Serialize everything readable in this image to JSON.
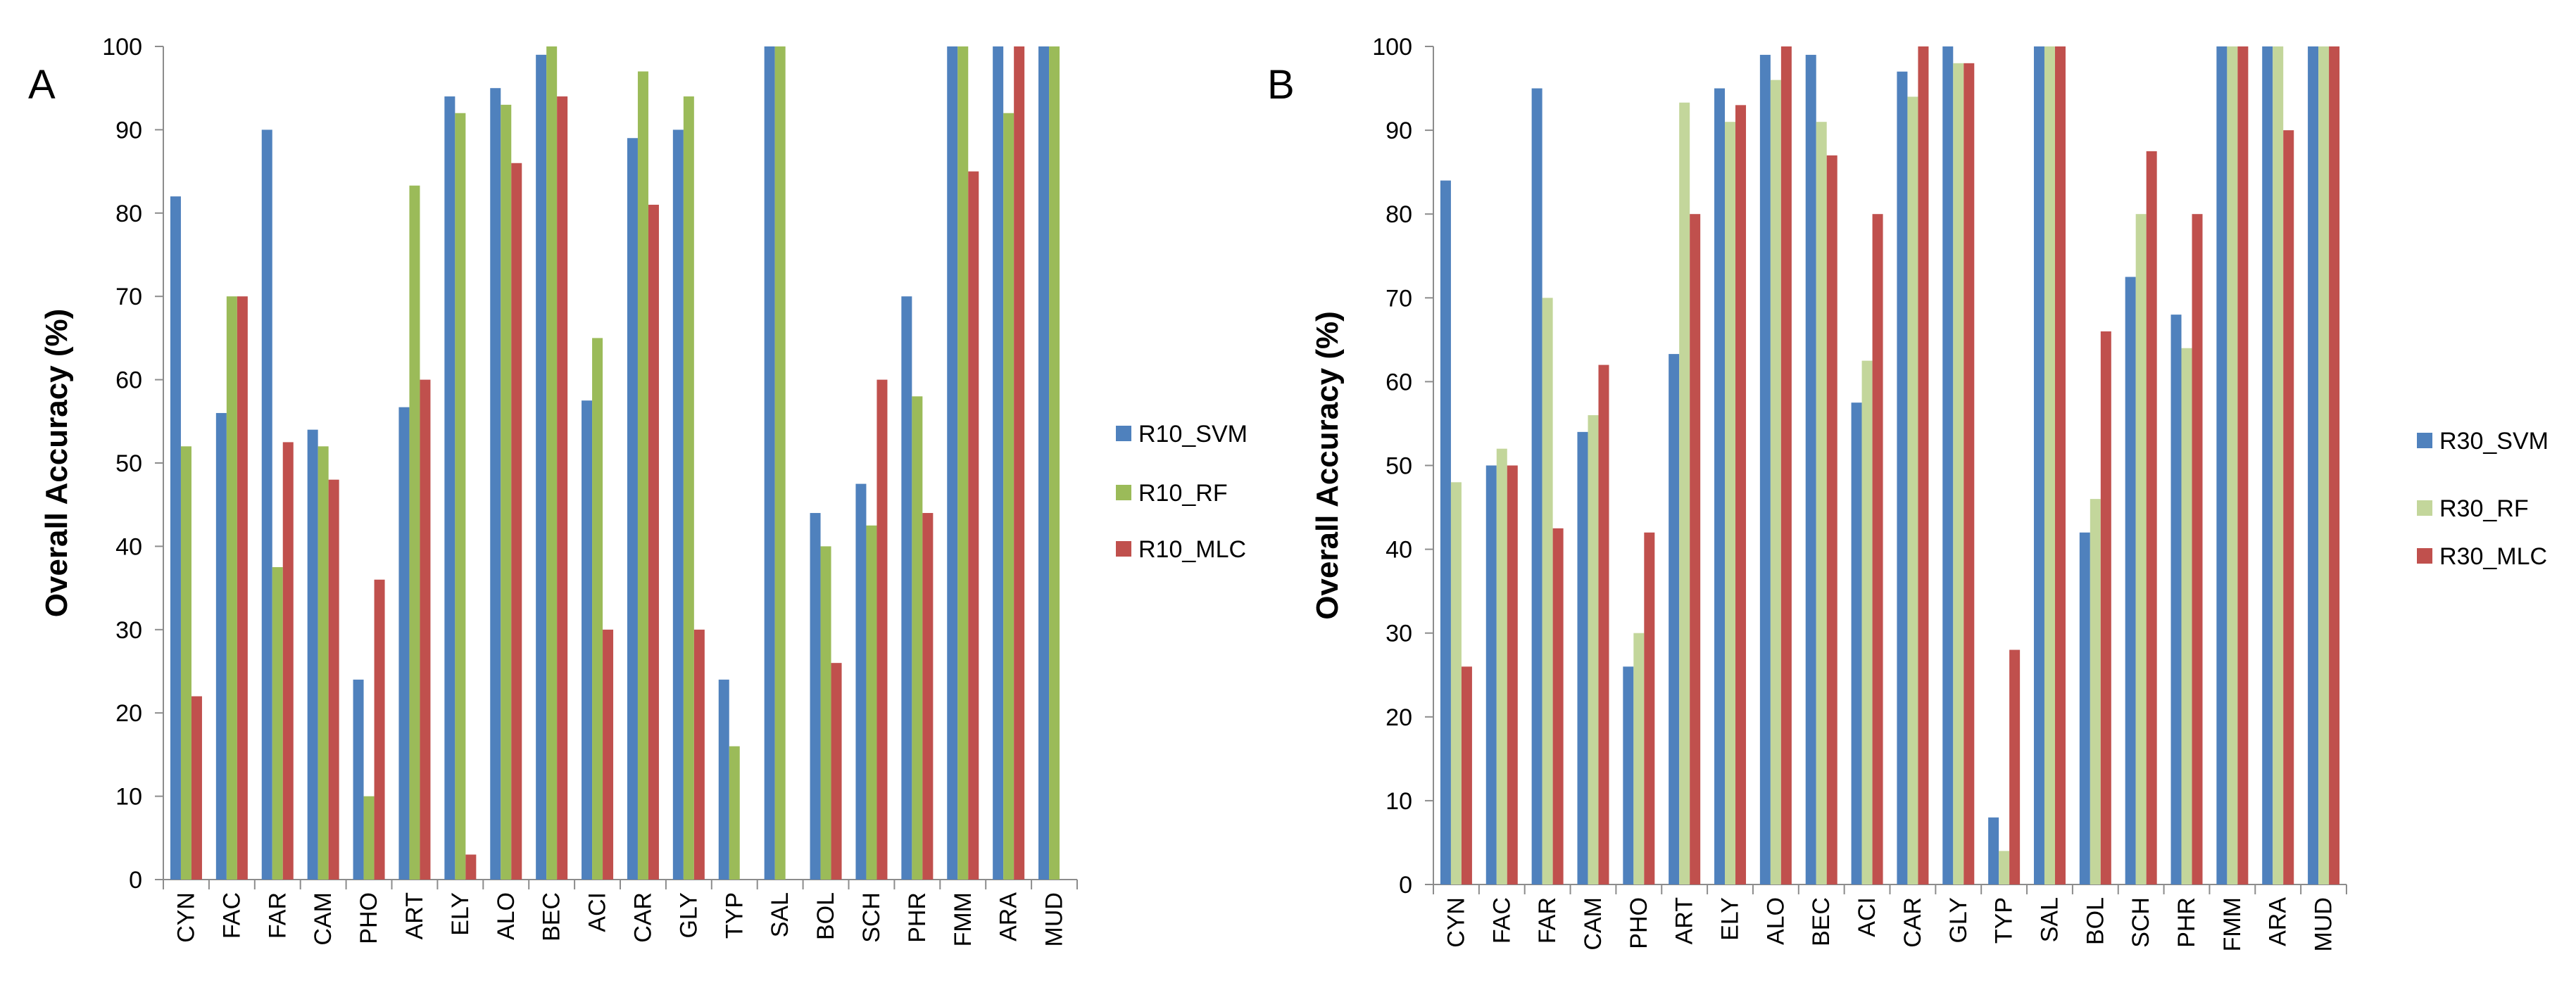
{
  "chart_data": [
    {
      "type": "bar",
      "panel_label": "A",
      "title": "",
      "xlabel": "",
      "ylabel": "Overall Accuracy (%)",
      "ylim": [
        0,
        100
      ],
      "yticks": [
        0,
        10,
        20,
        30,
        40,
        50,
        60,
        70,
        80,
        90,
        100
      ],
      "grid": false,
      "legend_position": "right",
      "categories": [
        "CYN",
        "FAC",
        "FAR",
        "CAM",
        "PHO",
        "ART",
        "ELY",
        "ALO",
        "BEC",
        "ACI",
        "CAR",
        "GLY",
        "TYP",
        "SAL",
        "BOL",
        "SCH",
        "PHR",
        "FMM",
        "ARA",
        "MUD"
      ],
      "series": [
        {
          "name": "R10_SVM",
          "color": "#4f81bd",
          "values": [
            82,
            56,
            90,
            54,
            24,
            56.7,
            94,
            95,
            99,
            57.5,
            89,
            90,
            24,
            100,
            44,
            47.5,
            70,
            100,
            100,
            100
          ]
        },
        {
          "name": "R10_RF",
          "color": "#9bbb59",
          "values": [
            52,
            70,
            37.5,
            52,
            10,
            83.3,
            92,
            93,
            100,
            65,
            97,
            94,
            16,
            100,
            40,
            42.5,
            58,
            100,
            92,
            100
          ]
        },
        {
          "name": "R10_MLC",
          "color": "#c0504d",
          "values": [
            22,
            70,
            52.5,
            48,
            36,
            60,
            3,
            86,
            94,
            30,
            81,
            30,
            0,
            0,
            26,
            60,
            44,
            85,
            100,
            0
          ]
        }
      ]
    },
    {
      "type": "bar",
      "panel_label": "B",
      "title": "",
      "xlabel": "",
      "ylabel": "Overall Accuracy (%)",
      "ylim": [
        0,
        100
      ],
      "yticks": [
        0,
        10,
        20,
        30,
        40,
        50,
        60,
        70,
        80,
        90,
        100
      ],
      "grid": false,
      "legend_position": "right",
      "categories": [
        "CYN",
        "FAC",
        "FAR",
        "CAM",
        "PHO",
        "ART",
        "ELY",
        "ALO",
        "BEC",
        "ACI",
        "CAR",
        "GLY",
        "TYP",
        "SAL",
        "BOL",
        "SCH",
        "PHR",
        "FMM",
        "ARA",
        "MUD"
      ],
      "series": [
        {
          "name": "R30_SVM",
          "color": "#4f81bd",
          "values": [
            84,
            50,
            95,
            54,
            26,
            63.3,
            95,
            99,
            99,
            57.5,
            97,
            100,
            8,
            100,
            42,
            72.5,
            68,
            100,
            100,
            100
          ]
        },
        {
          "name": "R30_RF",
          "color": "#c3d69b",
          "values": [
            48,
            52,
            70,
            56,
            30,
            93.3,
            91,
            96,
            91,
            62.5,
            94,
            98,
            4,
            100,
            46,
            80,
            64,
            100,
            100,
            100
          ]
        },
        {
          "name": "R30_MLC",
          "color": "#c0504d",
          "values": [
            26,
            50,
            42.5,
            62,
            42,
            80,
            93,
            100,
            87,
            80,
            100,
            98,
            28,
            100,
            66,
            87.5,
            80,
            100,
            90,
            100
          ]
        }
      ]
    }
  ]
}
